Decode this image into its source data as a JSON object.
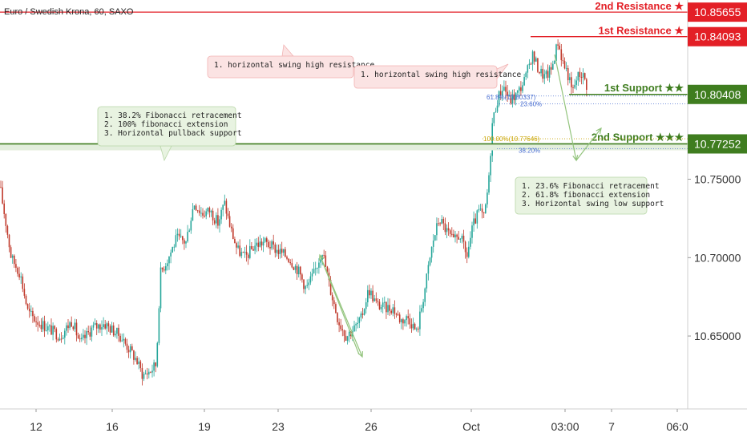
{
  "header": {
    "symbol_title": "Euro / Swedish Krona, 60, SAXO"
  },
  "colors": {
    "up": "#26a69a",
    "down": "#c0392b",
    "resistance": "#e31f26",
    "support": "#3f7d1f",
    "support_fill": "#e3eedd",
    "fib": "#c9a400",
    "fib_blue": "#4a6fd1",
    "callout_red": "#fbe3e3",
    "callout_red_border": "#f2b3b3",
    "callout_green": "#e8f3e1",
    "callout_green_border": "#b9d7a8",
    "arrow": "#93c47d"
  },
  "levels": {
    "resistance_2": {
      "label": "2nd Resistance ★",
      "price": "10.85655",
      "value": 10.85655
    },
    "resistance_1": {
      "label": "1st Resistance ★",
      "price": "10.84093",
      "value": 10.84093
    },
    "support_1": {
      "label": "1st Support ★★",
      "price": "10.80408",
      "value": 10.80408
    },
    "support_2": {
      "label": "2nd Support ★★★",
      "price": "10.77252",
      "value": 10.77252
    }
  },
  "annotations": {
    "resistance_note_a": "1. horizontal swing high resistance",
    "resistance_note_b": "1. horizontal swing high resistance",
    "support2_note": [
      "1. 38.2% Fibonacci retracement",
      "2. 100% fibonacci extension",
      "3. Horizontal pullback support"
    ],
    "support1_note": [
      "1. 23.6% Fibonacci retracement",
      "2. 61.8% fibonacci extension",
      "3. Horizontal swing low support"
    ],
    "fib_61": "61.8%(10.80337)",
    "fib_236": "23.60%",
    "fib_100": "100.00%(10.77646)",
    "fib_382": "38.20%"
  },
  "chart_data": {
    "type": "candlestick",
    "y_ticks": [
      "10.75000",
      "10.70000",
      "10.65000"
    ],
    "y_tick_values": [
      10.75,
      10.7,
      10.65
    ],
    "x_ticks": [
      "12",
      "16",
      "19",
      "23",
      "26",
      "Oct",
      "03:00",
      "7",
      "06:0"
    ],
    "ylim": [
      10.6035,
      10.8643
    ],
    "grid": false,
    "path": [
      [
        0,
        10.745
      ],
      [
        8,
        10.72
      ],
      [
        14,
        10.7
      ],
      [
        25,
        10.69
      ],
      [
        35,
        10.665
      ],
      [
        45,
        10.66
      ],
      [
        60,
        10.655
      ],
      [
        75,
        10.65
      ],
      [
        90,
        10.66
      ],
      [
        100,
        10.645
      ],
      [
        115,
        10.655
      ],
      [
        130,
        10.658
      ],
      [
        150,
        10.65
      ],
      [
        170,
        10.635
      ],
      [
        178,
        10.625
      ],
      [
        188,
        10.628
      ],
      [
        195,
        10.632
      ],
      [
        200,
        10.69
      ],
      [
        210,
        10.7
      ],
      [
        220,
        10.712
      ],
      [
        232,
        10.71
      ],
      [
        242,
        10.735
      ],
      [
        252,
        10.728
      ],
      [
        262,
        10.73
      ],
      [
        272,
        10.722
      ],
      [
        280,
        10.735
      ],
      [
        288,
        10.718
      ],
      [
        296,
        10.705
      ],
      [
        306,
        10.7
      ],
      [
        318,
        10.708
      ],
      [
        330,
        10.71
      ],
      [
        345,
        10.705
      ],
      [
        360,
        10.7
      ],
      [
        372,
        10.692
      ],
      [
        382,
        10.68
      ],
      [
        392,
        10.69
      ],
      [
        402,
        10.705
      ],
      [
        412,
        10.68
      ],
      [
        422,
        10.66
      ],
      [
        432,
        10.65
      ],
      [
        442,
        10.655
      ],
      [
        450,
        10.66
      ],
      [
        460,
        10.68
      ],
      [
        470,
        10.67
      ],
      [
        480,
        10.668
      ],
      [
        490,
        10.668
      ],
      [
        500,
        10.66
      ],
      [
        510,
        10.662
      ],
      [
        520,
        10.652
      ],
      [
        530,
        10.68
      ],
      [
        540,
        10.71
      ],
      [
        548,
        10.725
      ],
      [
        556,
        10.718
      ],
      [
        566,
        10.71
      ],
      [
        574,
        10.715
      ],
      [
        582,
        10.7
      ],
      [
        590,
        10.72
      ],
      [
        598,
        10.73
      ],
      [
        604,
        10.725
      ],
      [
        610,
        10.75
      ],
      [
        614,
        10.785
      ],
      [
        620,
        10.8
      ],
      [
        628,
        10.81
      ],
      [
        636,
        10.8
      ],
      [
        646,
        10.805
      ],
      [
        656,
        10.815
      ],
      [
        664,
        10.83
      ],
      [
        672,
        10.82
      ],
      [
        680,
        10.815
      ],
      [
        688,
        10.82
      ],
      [
        696,
        10.838
      ],
      [
        702,
        10.825
      ],
      [
        708,
        10.818
      ],
      [
        714,
        10.805
      ],
      [
        720,
        10.815
      ],
      [
        726,
        10.818
      ],
      [
        732,
        10.81
      ]
    ]
  }
}
